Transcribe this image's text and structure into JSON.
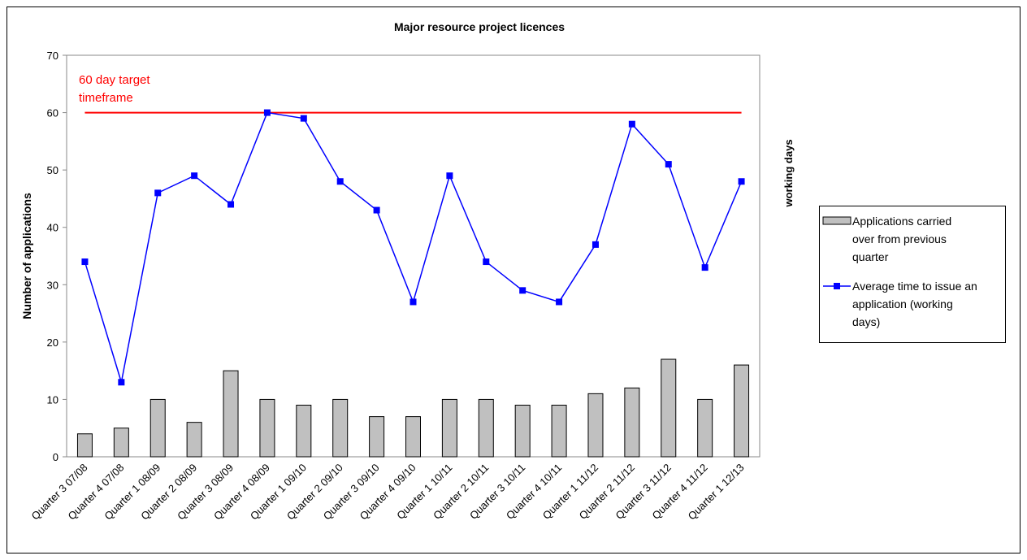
{
  "chart_data": {
    "type": "bar",
    "title": "Major resource project licences",
    "y_label": "Number of applications",
    "y2_label": "working days",
    "categories": [
      "Quarter 3 07/08",
      "Quarter 4 07/08",
      "Quarter 1 08/09",
      "Quarter 2 08/09",
      "Quarter 3 08/09",
      "Quarter 4 08/09",
      "Quarter 1 09/10",
      "Quarter 2 09/10",
      "Quarter 3 09/10",
      "Quarter 4 09/10",
      "Quarter 1 10/11",
      "Quarter 2 10/11",
      "Quarter 3 10/11",
      "Quarter 4 10/11",
      "Quarter 1 11/12",
      "Quarter 2 11/12",
      "Quarter 3 11/12",
      "Quarter 4 11/12",
      "Quarter 1 12/13"
    ],
    "series": [
      {
        "name": "Applications carried over from previous quarter",
        "type": "bar",
        "color": "#c0c0c0",
        "values": [
          4,
          5,
          10,
          6,
          15,
          10,
          9,
          10,
          7,
          7,
          10,
          10,
          9,
          9,
          11,
          12,
          17,
          10,
          16
        ]
      },
      {
        "name": "Average time to issue an application (working days)",
        "type": "line",
        "color": "#0000ff",
        "values": [
          34,
          13,
          46,
          49,
          44,
          60,
          59,
          48,
          43,
          27,
          49,
          34,
          29,
          27,
          37,
          58,
          51,
          33,
          48
        ]
      }
    ],
    "target": {
      "value": 60,
      "color": "#ff0000",
      "label": [
        "60 day target",
        "timeframe"
      ]
    },
    "ylim": [
      0,
      70
    ],
    "yticks": [
      0,
      10,
      20,
      30,
      40,
      50,
      60,
      70
    ],
    "legend": "right"
  }
}
